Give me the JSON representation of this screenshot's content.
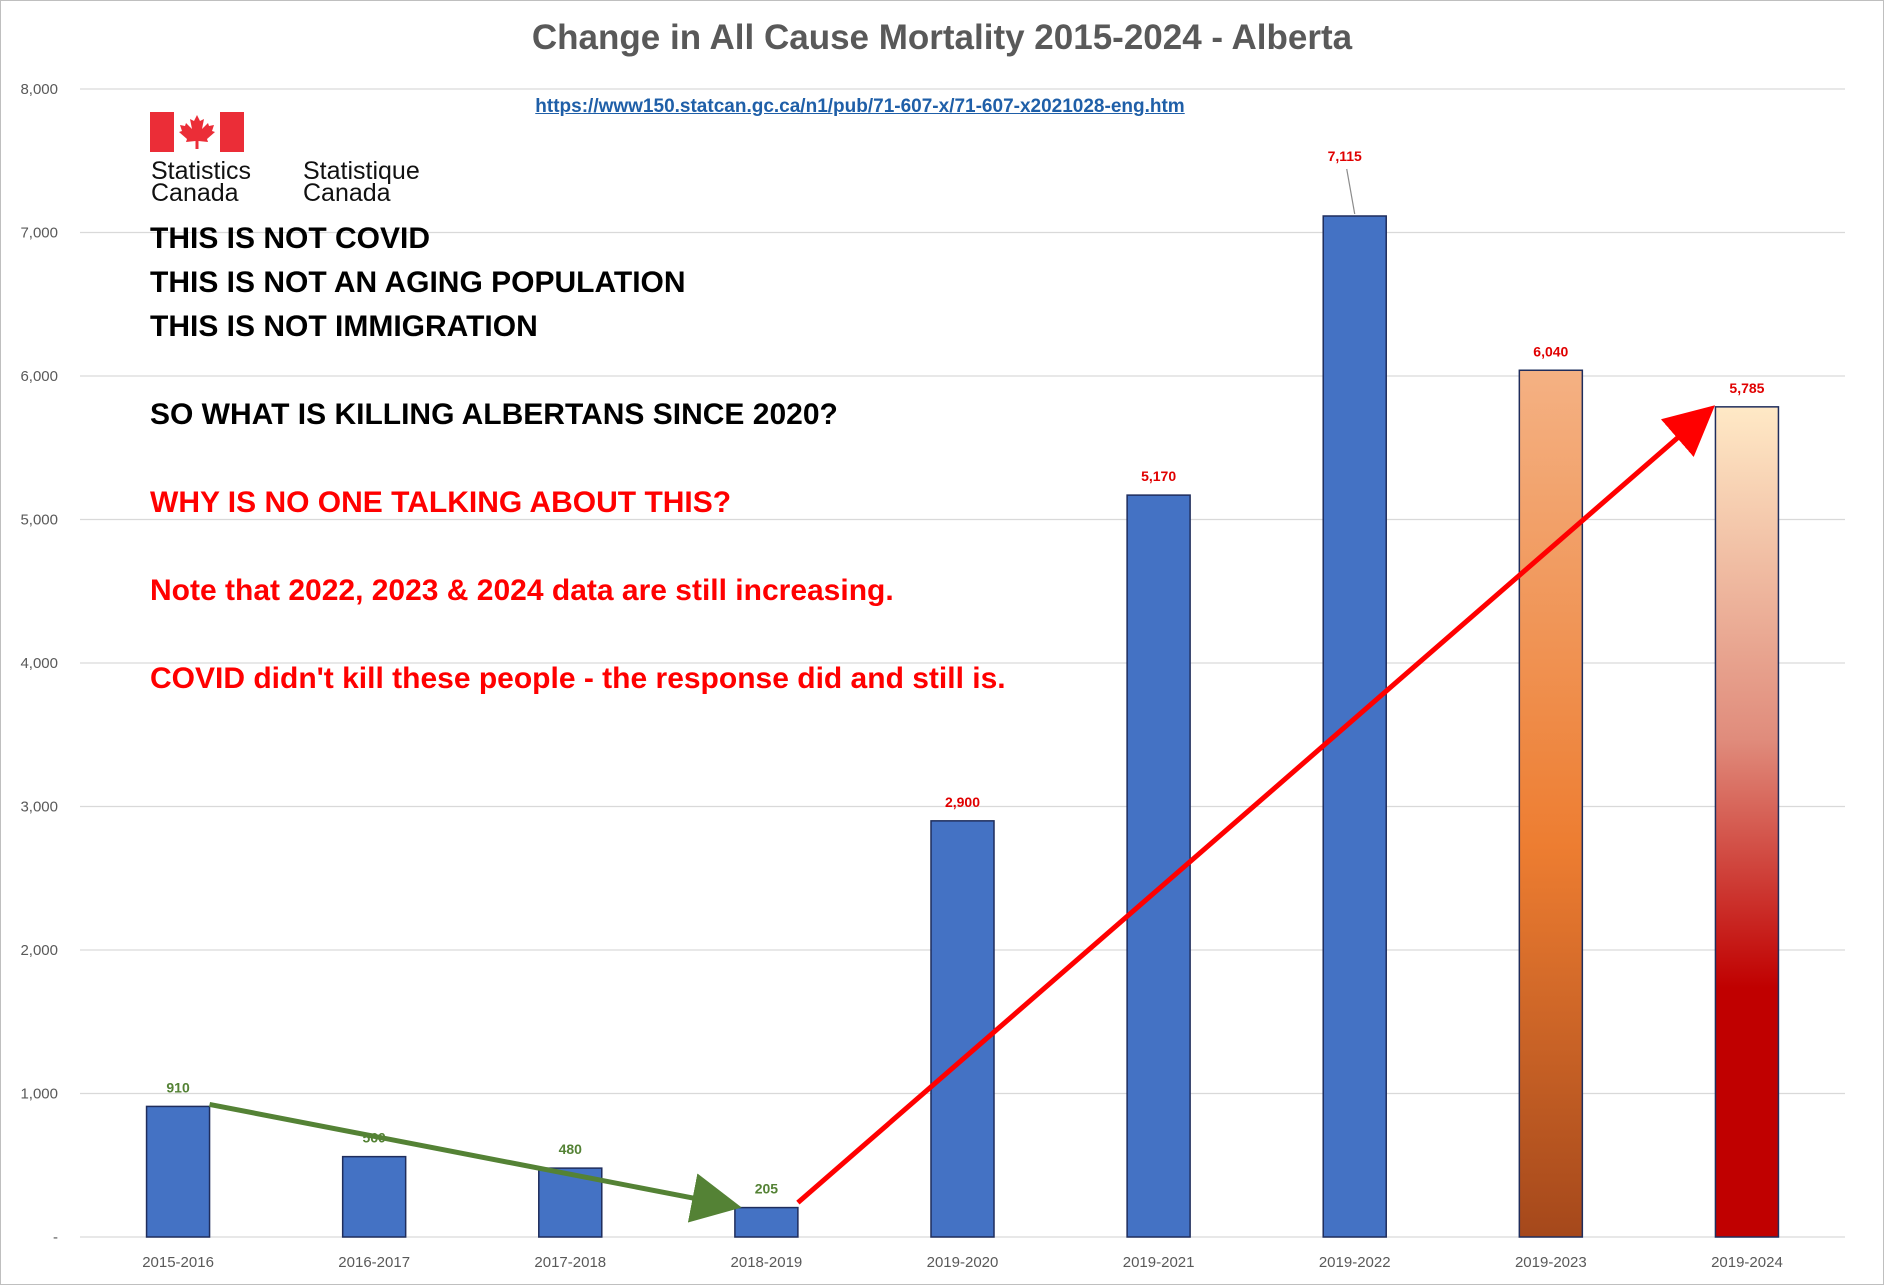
{
  "chart_data": {
    "type": "bar",
    "title": "Change in All Cause Mortality 2015-2024 - Alberta",
    "xlabel": "",
    "ylabel": "",
    "categories": [
      "2015-2016",
      "2016-2017",
      "2017-2018",
      "2018-2019",
      "2019-2020",
      "2019-2021",
      "2019-2022",
      "2019-2023",
      "2019-2024"
    ],
    "values": [
      910,
      560,
      480,
      205,
      2900,
      5170,
      7115,
      6040,
      5785
    ],
    "data_labels": [
      "910",
      "560",
      "480",
      "205",
      "2,900",
      "5,170",
      "7,115",
      "6,040",
      "5,785"
    ],
    "ylim": [
      0,
      8000
    ],
    "y_ticks": [
      0,
      1000,
      2000,
      3000,
      4000,
      5000,
      6000,
      7000,
      8000
    ],
    "y_tick_labels": [
      "-",
      "1,000",
      "2,000",
      "3,000",
      "4,000",
      "5,000",
      "6,000",
      "7,000",
      "8,000"
    ],
    "grid": true,
    "bar_fill_styles": [
      "solid",
      "solid",
      "solid",
      "solid",
      "solid",
      "solid",
      "solid",
      "gradient-orange",
      "gradient-red"
    ],
    "label_colors": [
      "#548235",
      "#548235",
      "#548235",
      "#548235",
      "#e00000",
      "#e00000",
      "#e00000",
      "#e00000",
      "#e00000"
    ],
    "trend_arrows": [
      {
        "from_category": "2015-2016",
        "from_value": 910,
        "to_category": "2018-2019",
        "to_value": 205,
        "color": "#548235"
      },
      {
        "from_category": "2018-2019",
        "from_value": 205,
        "to_category": "2019-2024",
        "to_value": 5785,
        "color": "#ff0000"
      }
    ]
  },
  "source_url": "https://www150.statcan.gc.ca/n1/pub/71-607-x/71-607-x2021028-eng.htm",
  "logo": {
    "english_line1": "Statistics",
    "english_line2": "Canada",
    "french_line1": "Statistique",
    "french_line2": "Canada"
  },
  "annotations": {
    "line1": "THIS IS NOT COVID",
    "line2": "THIS IS NOT AN AGING POPULATION",
    "line3": "THIS IS NOT IMMIGRATION",
    "line4": "SO WHAT IS KILLING ALBERTANS SINCE 2020?",
    "line5": "WHY IS NO ONE TALKING ABOUT THIS?",
    "line6": "Note that 2022, 2023 & 2024 data are still increasing.",
    "line7": "COVID didn't kill these people - the response did and still is."
  },
  "colors": {
    "bar_blue": "#4472c4",
    "bar_outline": "#1f2d5c",
    "gridline": "#d9d9d9",
    "axis_text": "#595959",
    "green_arrow": "#548235",
    "red_arrow": "#ff0000",
    "flag_red": "#eb2d37"
  }
}
